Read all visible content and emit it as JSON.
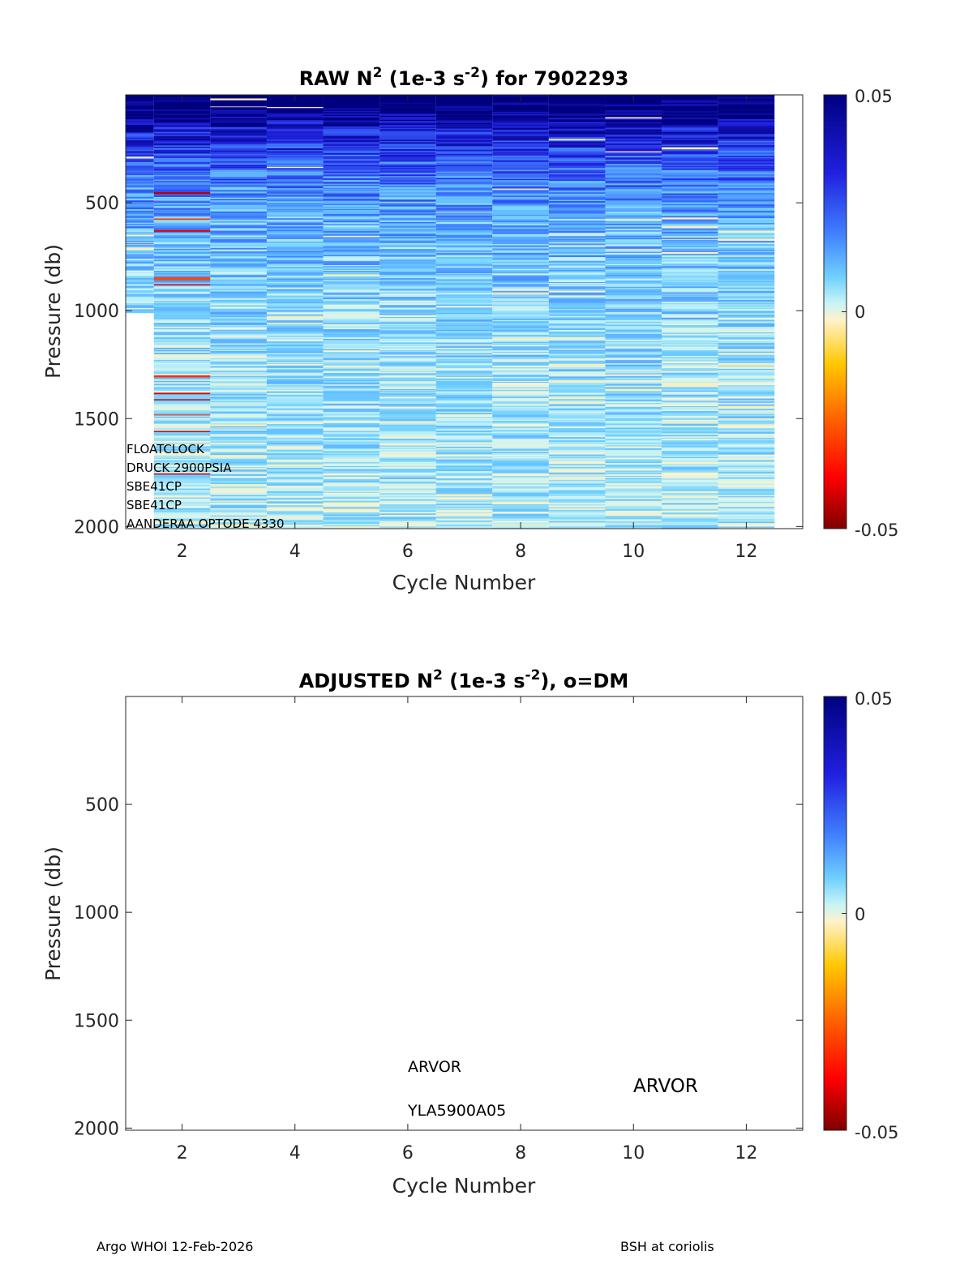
{
  "chart_data": [
    {
      "type": "heatmap",
      "title_parts": {
        "prefix": "RAW N",
        "sup1": "2",
        "mid": " (1e-3 s",
        "sup2": "-2",
        "suffix": ") for 7902293"
      },
      "xlabel": "Cycle Number",
      "ylabel": "Pressure (db)",
      "xlim": [
        1,
        13
      ],
      "ylim": [
        2010,
        0
      ],
      "xticks": [
        "2",
        "4",
        "6",
        "8",
        "10",
        "12"
      ],
      "yticks": [
        "500",
        "1000",
        "1500",
        "2000"
      ],
      "colorbar": {
        "min": -0.05,
        "max": 0.05,
        "ticks": [
          "0.05",
          "0",
          "-0.05"
        ]
      },
      "profiles": [
        {
          "cycle": 1,
          "max_pressure": 1010
        },
        {
          "cycle": 2,
          "max_pressure": 2010
        },
        {
          "cycle": 3,
          "max_pressure": 2010
        },
        {
          "cycle": 4,
          "max_pressure": 2010
        },
        {
          "cycle": 5,
          "max_pressure": 2010
        },
        {
          "cycle": 6,
          "max_pressure": 2010
        },
        {
          "cycle": 7,
          "max_pressure": 2010
        },
        {
          "cycle": 8,
          "max_pressure": 2010
        },
        {
          "cycle": 9,
          "max_pressure": 2010
        },
        {
          "cycle": 10,
          "max_pressure": 2010
        },
        {
          "cycle": 11,
          "max_pressure": 2010
        },
        {
          "cycle": 12,
          "max_pressure": 2010
        }
      ],
      "annotations": [
        "FLOATCLOCK",
        "DRUCK 2900PSIA",
        "SBE41CP",
        "SBE41CP",
        "AANDERAA OPTODE 4330"
      ]
    },
    {
      "type": "heatmap",
      "title_parts": {
        "prefix": "ADJUSTED N",
        "sup1": "2",
        "mid": " (1e-3 s",
        "sup2": "-2",
        "suffix": "), o=DM"
      },
      "xlabel": "Cycle Number",
      "ylabel": "Pressure (db)",
      "xlim": [
        1,
        13
      ],
      "ylim": [
        2010,
        0
      ],
      "xticks": [
        "2",
        "4",
        "6",
        "8",
        "10",
        "12"
      ],
      "yticks": [
        "500",
        "1000",
        "1500",
        "2000"
      ],
      "colorbar": {
        "min": -0.05,
        "max": 0.05,
        "ticks": [
          "0.05",
          "0",
          "-0.05"
        ]
      },
      "profiles": [],
      "annotations": [
        "ARVOR",
        "YLA5900A05",
        "ARVOR"
      ]
    }
  ],
  "footer": {
    "left": "Argo WHOI 12-Feb-2026",
    "right": "BSH at coriolis"
  }
}
